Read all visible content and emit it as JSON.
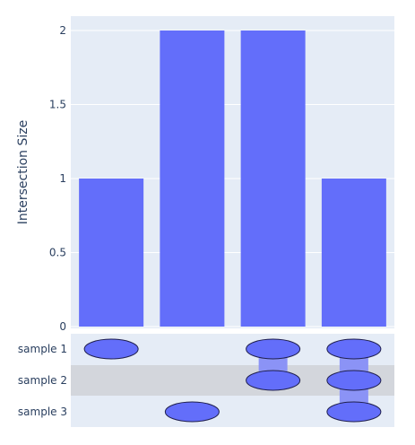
{
  "chart_data": {
    "type": "bar",
    "title": "",
    "xlabel": "",
    "ylabel": "Intersection Size",
    "ylim": [
      0,
      2.1
    ],
    "yticks": [
      "0",
      "0.5",
      "1",
      "1.5",
      "2"
    ],
    "ytick_values": [
      0,
      0.5,
      1,
      1.5,
      2
    ],
    "grid": true,
    "bar_color": "#636efa",
    "sets": [
      "sample 1",
      "sample 2",
      "sample 3"
    ],
    "intersections": [
      {
        "members": [
          0
        ],
        "value": 1
      },
      {
        "members": [
          2
        ],
        "value": 2
      },
      {
        "members": [
          0,
          1
        ],
        "value": 2
      },
      {
        "members": [
          0,
          1,
          2
        ],
        "value": 1
      }
    ]
  },
  "colors": {
    "plot_bg": "#e5ecf6",
    "grid": "#ffffff",
    "row_highlight": "#d3d6dc",
    "dot": "#636efa",
    "dot_outline": "#1f1f4d",
    "connector": "#8b93f6",
    "text": "#2a3f5f"
  }
}
